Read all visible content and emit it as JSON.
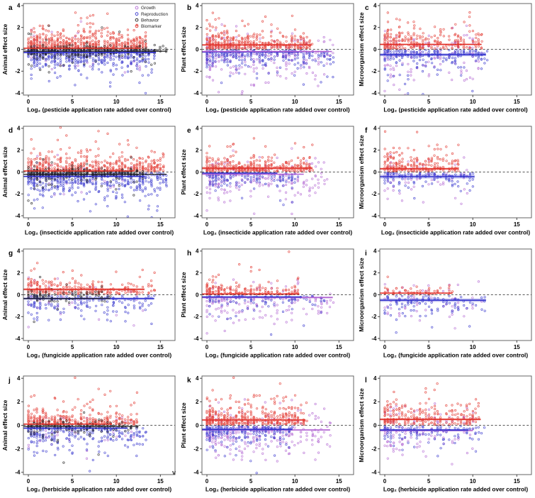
{
  "figure": {
    "stray_text": "v",
    "colors": {
      "growth": "#b164d2",
      "reproduction": "#3232cd",
      "behavior": "#1c1c1c",
      "biomarker": "#e2322a",
      "axis": "#555555",
      "zero_line": "#222222",
      "text": "#000000"
    },
    "legend": {
      "position": "top-right-panel-a",
      "entries": [
        {
          "key": "growth",
          "label": "Growth"
        },
        {
          "key": "reproduction",
          "label": "Reproduction"
        },
        {
          "key": "behavior",
          "label": "Behavior"
        },
        {
          "key": "biomarker",
          "label": "Biomarker"
        }
      ]
    }
  },
  "chart_data": [
    {
      "id": "a",
      "type": "scatter",
      "legend": true,
      "ylabel": "Animal effect size",
      "xlabel": "Log₂ (pesticide application rate added over control)",
      "xticks": [
        0,
        5,
        10,
        15
      ],
      "yticks": [
        -4,
        -2,
        0,
        2,
        4
      ],
      "xlim": [
        0,
        16
      ],
      "ylim": [
        -4,
        4
      ],
      "zero_line": true,
      "series": [
        {
          "key": "growth",
          "name": "Growth",
          "n": 45,
          "x_max": 13,
          "kind": "mixed",
          "spread": 1.2,
          "bias": 1.3
        },
        {
          "key": "reproduction",
          "name": "Reproduction",
          "n": 460,
          "x_max": 14.5,
          "kind": "neg",
          "spread": 0.7,
          "bias": 1.25
        },
        {
          "key": "biomarker",
          "name": "Biomarker",
          "n": 470,
          "x_max": 13.5,
          "kind": "pos",
          "spread": 0.65,
          "bias": 1.25,
          "out": 0.12
        },
        {
          "key": "behavior",
          "name": "Behavior",
          "n": 350,
          "x_max": 15.7,
          "kind": "tight",
          "spread": 0.23,
          "bias": 1.25
        }
      ],
      "mean_lines": [
        {
          "series": "biomarker",
          "y": 0.1,
          "x_end": 12.8,
          "ci": 0.05
        },
        {
          "series": "reproduction",
          "y": -0.3,
          "x_end": 14.5,
          "ci": 0.06
        },
        {
          "series": "behavior",
          "y": -0.17,
          "x_end": 15.7,
          "ci": 0.04
        }
      ]
    },
    {
      "id": "b",
      "type": "scatter",
      "legend": false,
      "ylabel": "Plant effect size",
      "xlabel": "Log₂ (pesticide application rate added over control)",
      "xticks": [
        0,
        5,
        10,
        15
      ],
      "yticks": [
        -4,
        -2,
        0,
        2,
        4
      ],
      "xlim": [
        0,
        16
      ],
      "ylim": [
        -4,
        4
      ],
      "zero_line": true,
      "series": [
        {
          "key": "growth",
          "name": "Growth",
          "n": 230,
          "x_max": 14.3,
          "kind": "mixed",
          "spread": 1.3,
          "bias": 1.4,
          "posfrac": 0.25
        },
        {
          "key": "reproduction",
          "name": "Reproduction",
          "n": 250,
          "x_max": 14.3,
          "kind": "neg",
          "spread": 0.6,
          "bias": 1.4
        },
        {
          "key": "biomarker",
          "name": "Biomarker",
          "n": 400,
          "x_max": 11.9,
          "kind": "pos",
          "spread": 0.6,
          "bias": 1.35,
          "out": 0.13
        }
      ],
      "mean_lines": [
        {
          "series": "biomarker",
          "y": 0.4,
          "x_end": 11.9,
          "ci": 0.07
        },
        {
          "series": "reproduction",
          "y": -0.25,
          "x_end": 10.5,
          "ci": 0.07
        },
        {
          "series": "growth",
          "y": -0.2,
          "x_end": 14.2,
          "ci": 0.05
        }
      ]
    },
    {
      "id": "c",
      "type": "scatter",
      "legend": false,
      "ylabel": "Microorganism effect size",
      "xlabel": "Log₂ (pesticide application rate added over control)",
      "xticks": [
        0,
        5,
        10,
        15
      ],
      "yticks": [
        -4,
        -2,
        0,
        2,
        4
      ],
      "xlim": [
        0,
        16
      ],
      "ylim": [
        -4,
        4
      ],
      "zero_line": true,
      "series": [
        {
          "key": "growth",
          "name": "Growth",
          "n": 130,
          "x_max": 11,
          "kind": "mixed",
          "spread": 1.4,
          "bias": 1.5
        },
        {
          "key": "reproduction",
          "name": "Reproduction",
          "n": 190,
          "x_max": 11.6,
          "kind": "neg",
          "spread": 0.55,
          "bias": 1.4
        },
        {
          "key": "biomarker",
          "name": "Biomarker",
          "n": 250,
          "x_max": 11,
          "kind": "pos",
          "spread": 0.75,
          "bias": 1.4,
          "out": 0.18
        }
      ],
      "mean_lines": [
        {
          "series": "biomarker",
          "y": 0.45,
          "x_end": 11,
          "ci": 0.07
        },
        {
          "series": "reproduction",
          "y": -0.5,
          "x_end": 11.5,
          "ci": 0.14
        }
      ]
    },
    {
      "id": "d",
      "type": "scatter",
      "legend": false,
      "ylabel": "Animal effect size",
      "xlabel": "Log₂ (insecticide application rate added over control)",
      "xticks": [
        0,
        5,
        10,
        15
      ],
      "yticks": [
        -4,
        -2,
        0,
        2,
        4
      ],
      "xlim": [
        0,
        16
      ],
      "ylim": [
        -4,
        4
      ],
      "zero_line": true,
      "series": [
        {
          "key": "growth",
          "name": "Growth",
          "n": 35,
          "x_max": 12,
          "kind": "mixed",
          "spread": 1.2,
          "bias": 1.3
        },
        {
          "key": "reproduction",
          "name": "Reproduction",
          "n": 470,
          "x_max": 15.7,
          "kind": "neg",
          "spread": 0.8,
          "bias": 1.2
        },
        {
          "key": "biomarker",
          "name": "Biomarker",
          "n": 430,
          "x_max": 15.5,
          "kind": "pos",
          "spread": 0.6,
          "bias": 1.2,
          "out": 0.1
        },
        {
          "key": "behavior",
          "name": "Behavior",
          "n": 330,
          "x_max": 13,
          "kind": "tight",
          "spread": 0.23,
          "bias": 1.25
        }
      ],
      "mean_lines": [
        {
          "series": "biomarker",
          "y": 0.1,
          "x_end": 12,
          "ci": 0.05
        },
        {
          "series": "reproduction",
          "y": -0.4,
          "x_end": 13.2,
          "ci": 0.06
        },
        {
          "series": "behavior",
          "y": -0.2,
          "x_end": 15.7,
          "ci": 0.04
        }
      ]
    },
    {
      "id": "e",
      "type": "scatter",
      "legend": false,
      "ylabel": "Plant effect size",
      "xlabel": "Log₂ (insecticide application rate added over control)",
      "xticks": [
        0,
        5,
        10,
        15
      ],
      "yticks": [
        -4,
        -2,
        0,
        2,
        4
      ],
      "xlim": [
        0,
        16
      ],
      "ylim": [
        -4,
        4
      ],
      "zero_line": true,
      "series": [
        {
          "key": "growth",
          "name": "Growth",
          "n": 180,
          "x_max": 13.8,
          "kind": "mixed",
          "spread": 1.1,
          "bias": 1.45,
          "posfrac": 0.2
        },
        {
          "key": "reproduction",
          "name": "Reproduction",
          "n": 140,
          "x_max": 10.3,
          "kind": "neg",
          "spread": 0.55,
          "bias": 1.45
        },
        {
          "key": "biomarker",
          "name": "Biomarker",
          "n": 300,
          "x_max": 12,
          "kind": "pos",
          "spread": 0.5,
          "bias": 1.4,
          "out": 0.12
        }
      ],
      "mean_lines": [
        {
          "series": "biomarker",
          "y": 0.35,
          "x_end": 12,
          "ci": 0.15
        },
        {
          "series": "growth",
          "y": -0.2,
          "x_end": 11,
          "ci": 0.04
        },
        {
          "series": "reproduction",
          "y": -0.1,
          "x_end": 8,
          "ci": 0.05
        }
      ]
    },
    {
      "id": "f",
      "type": "scatter",
      "legend": false,
      "ylabel": "Microorganism effect size",
      "xlabel": "Log₂ (insecticide application rate added over control)",
      "xticks": [
        0,
        5,
        10,
        15
      ],
      "yticks": [
        -4,
        -2,
        0,
        2,
        4
      ],
      "xlim": [
        0,
        16
      ],
      "ylim": [
        -4,
        4
      ],
      "zero_line": true,
      "series": [
        {
          "key": "growth",
          "name": "Growth",
          "n": 70,
          "x_max": 9.5,
          "kind": "mixed",
          "spread": 1.2,
          "bias": 1.5
        },
        {
          "key": "reproduction",
          "name": "Reproduction",
          "n": 110,
          "x_max": 10.3,
          "kind": "neg",
          "spread": 0.6,
          "bias": 1.45
        },
        {
          "key": "biomarker",
          "name": "Biomarker",
          "n": 210,
          "x_max": 8.5,
          "kind": "pos",
          "spread": 0.7,
          "bias": 1.4,
          "out": 0.15
        }
      ],
      "mean_lines": [
        {
          "series": "biomarker",
          "y": 0.3,
          "x_end": 8.4,
          "ci": 0.1
        },
        {
          "series": "reproduction",
          "y": -0.42,
          "x_end": 10.2,
          "ci": 0.18
        }
      ]
    },
    {
      "id": "g",
      "type": "scatter",
      "legend": false,
      "ylabel": "Animal effect size",
      "xlabel": "Log₂ (fungicide application rate added over control)",
      "xticks": [
        0,
        5,
        10,
        15
      ],
      "yticks": [
        -4,
        -2,
        0,
        2,
        4
      ],
      "xlim": [
        0,
        16
      ],
      "ylim": [
        -4,
        4
      ],
      "zero_line": true,
      "series": [
        {
          "key": "growth",
          "name": "Growth",
          "n": 35,
          "x_max": 13,
          "kind": "mixed",
          "spread": 1.1,
          "bias": 1.4
        },
        {
          "key": "reproduction",
          "name": "Reproduction",
          "n": 165,
          "x_max": 14.3,
          "kind": "neg",
          "spread": 0.7,
          "bias": 1.35
        },
        {
          "key": "biomarker",
          "name": "Biomarker",
          "n": 240,
          "x_max": 14.3,
          "kind": "pos",
          "spread": 0.55,
          "bias": 1.35,
          "out": 0.12
        },
        {
          "key": "behavior",
          "name": "Behavior",
          "n": 85,
          "x_max": 9.3,
          "kind": "tight",
          "spread": 0.25,
          "bias": 1.4
        }
      ],
      "mean_lines": [
        {
          "series": "biomarker",
          "y": 0.5,
          "x_end": 13.2,
          "ci": 0.1
        },
        {
          "series": "reproduction",
          "y": -0.35,
          "x_end": 14.3,
          "ci": 0.1
        },
        {
          "series": "behavior",
          "y": -0.35,
          "x_end": 9.3,
          "ci": 0.04
        }
      ]
    },
    {
      "id": "h",
      "type": "scatter",
      "legend": false,
      "ylabel": "Plant effect size",
      "xlabel": "Log₂ (fungicide application rate added over control)",
      "xticks": [
        0,
        5,
        10,
        15
      ],
      "yticks": [
        -4,
        -2,
        0,
        2,
        4
      ],
      "xlim": [
        0,
        16
      ],
      "ylim": [
        -4,
        4
      ],
      "zero_line": true,
      "series": [
        {
          "key": "growth",
          "name": "Growth",
          "n": 150,
          "x_max": 14.4,
          "kind": "mixed",
          "spread": 1.1,
          "bias": 1.4,
          "posfrac": 0.15
        },
        {
          "key": "reproduction",
          "name": "Reproduction",
          "n": 100,
          "x_max": 13.5,
          "kind": "neg",
          "spread": 0.5,
          "bias": 1.35
        },
        {
          "key": "biomarker",
          "name": "Biomarker",
          "n": 170,
          "x_max": 10.5,
          "kind": "pos",
          "spread": 0.45,
          "bias": 1.45,
          "out": 0.1
        }
      ],
      "mean_lines": [
        {
          "series": "biomarker",
          "y": 0.07,
          "x_end": 10.5,
          "ci": 0.04
        },
        {
          "series": "growth",
          "y": -0.25,
          "x_end": 14.3,
          "ci": 0.09
        },
        {
          "series": "reproduction",
          "y": -0.2,
          "x_end": 10.8,
          "ci": 0.05
        }
      ]
    },
    {
      "id": "i",
      "type": "scatter",
      "legend": false,
      "ylabel": "Microorganism effect size",
      "xlabel": "Log₂ (fungicide application rate added over control)",
      "xticks": [
        0,
        5,
        10,
        15
      ],
      "yticks": [
        -4,
        -2,
        0,
        2,
        4
      ],
      "xlim": [
        0,
        16
      ],
      "ylim": [
        -4,
        4
      ],
      "zero_line": true,
      "series": [
        {
          "key": "growth",
          "name": "Growth",
          "n": 60,
          "x_max": 11,
          "kind": "mixed",
          "spread": 1.3,
          "bias": 1.5
        },
        {
          "key": "reproduction",
          "name": "Reproduction",
          "n": 100,
          "x_max": 11.5,
          "kind": "neg",
          "spread": 0.9,
          "bias": 1.3
        },
        {
          "key": "biomarker",
          "name": "Biomarker",
          "n": 55,
          "x_max": 7.8,
          "kind": "pos",
          "spread": 0.35,
          "bias": 1.5,
          "out": 0.06
        }
      ],
      "mean_lines": [
        {
          "series": "biomarker",
          "y": 0.15,
          "x_end": 7.7,
          "ci": 0.05
        },
        {
          "series": "reproduction",
          "y": -0.5,
          "x_end": 11.5,
          "ci": 0.16
        }
      ]
    },
    {
      "id": "j",
      "type": "scatter",
      "legend": false,
      "ylabel": "Animal effect size",
      "xlabel": "Log₂ (herbicide application rate added over control)",
      "xticks": [
        0,
        5,
        10,
        15
      ],
      "yticks": [
        -4,
        -2,
        0,
        2,
        4
      ],
      "xlim": [
        0,
        16
      ],
      "ylim": [
        -4,
        4
      ],
      "zero_line": true,
      "series": [
        {
          "key": "growth",
          "name": "Growth",
          "n": 40,
          "x_max": 13.4,
          "kind": "mixed",
          "spread": 1.0,
          "bias": 1.35
        },
        {
          "key": "reproduction",
          "name": "Reproduction",
          "n": 250,
          "x_max": 13.5,
          "kind": "neg",
          "spread": 0.75,
          "bias": 1.3
        },
        {
          "key": "biomarker",
          "name": "Biomarker",
          "n": 300,
          "x_max": 12.5,
          "kind": "pos",
          "spread": 0.5,
          "bias": 1.3,
          "out": 0.08
        },
        {
          "key": "behavior",
          "name": "Behavior",
          "n": 150,
          "x_max": 12.5,
          "kind": "tight",
          "spread": 0.25,
          "bias": 1.35
        }
      ],
      "mean_lines": [
        {
          "series": "biomarker",
          "y": 0.1,
          "x_end": 9.5,
          "ci": 0.04
        },
        {
          "series": "behavior",
          "y": -0.1,
          "x_end": 12.5,
          "ci": 0.035
        },
        {
          "series": "reproduction",
          "y": -0.25,
          "x_end": 11.3,
          "ci": 0.05
        }
      ]
    },
    {
      "id": "k",
      "type": "scatter",
      "legend": false,
      "ylabel": "Plant effect size",
      "xlabel": "Log₂ (herbicide application rate added over control)",
      "xticks": [
        0,
        5,
        10,
        15
      ],
      "yticks": [
        -4,
        -2,
        0,
        2,
        4
      ],
      "xlim": [
        0,
        16
      ],
      "ylim": [
        -4,
        4
      ],
      "zero_line": true,
      "series": [
        {
          "key": "growth",
          "name": "Growth",
          "n": 250,
          "x_max": 14,
          "kind": "mixed",
          "spread": 1.3,
          "bias": 1.4,
          "posfrac": 0.2
        },
        {
          "key": "reproduction",
          "name": "Reproduction",
          "n": 200,
          "x_max": 9.8,
          "kind": "neg",
          "spread": 0.6,
          "bias": 1.4
        },
        {
          "key": "biomarker",
          "name": "Biomarker",
          "n": 370,
          "x_max": 11.2,
          "kind": "pos",
          "spread": 0.6,
          "bias": 1.35,
          "out": 0.12
        }
      ],
      "mean_lines": [
        {
          "series": "biomarker",
          "y": 0.45,
          "x_end": 11.2,
          "ci": 0.09
        },
        {
          "series": "growth",
          "y": -0.4,
          "x_end": 14,
          "ci": 0.05
        },
        {
          "series": "reproduction",
          "y": -0.35,
          "x_end": 9.7,
          "ci": 0.1
        }
      ]
    },
    {
      "id": "l",
      "type": "scatter",
      "legend": false,
      "ylabel": "Microorganism effect size",
      "xlabel": "Log₂ (herbicide application rate added over control)",
      "xticks": [
        0,
        5,
        10,
        15
      ],
      "yticks": [
        -4,
        -2,
        0,
        2,
        4
      ],
      "xlim": [
        0,
        16
      ],
      "ylim": [
        -4,
        4
      ],
      "zero_line": true,
      "series": [
        {
          "key": "growth",
          "name": "Growth",
          "n": 130,
          "x_max": 10,
          "kind": "mixed",
          "spread": 1.2,
          "bias": 1.45
        },
        {
          "key": "reproduction",
          "name": "Reproduction",
          "n": 100,
          "x_max": 11.3,
          "kind": "neg",
          "spread": 0.6,
          "bias": 1.4
        },
        {
          "key": "biomarker",
          "name": "Biomarker",
          "n": 230,
          "x_max": 10.9,
          "kind": "pos",
          "spread": 0.75,
          "bias": 1.4,
          "out": 0.16
        }
      ],
      "mean_lines": [
        {
          "series": "biomarker",
          "y": 0.5,
          "x_end": 10.9,
          "ci": 0.1
        },
        {
          "series": "growth",
          "y": -0.45,
          "x_end": 10,
          "ci": 0.05
        },
        {
          "series": "reproduction",
          "y": -0.4,
          "x_end": 9.5,
          "ci": 0.09
        }
      ]
    }
  ]
}
